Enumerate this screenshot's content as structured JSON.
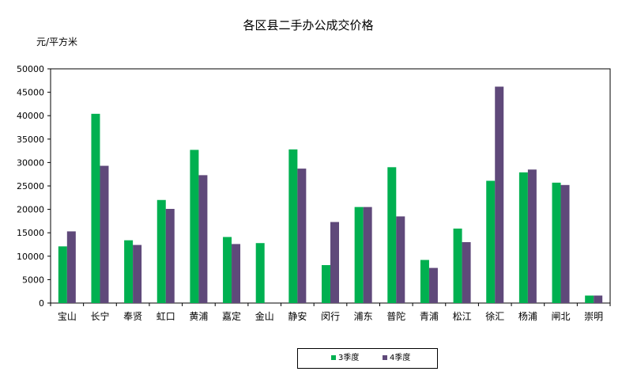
{
  "chart_data": {
    "type": "bar",
    "title": "各区县二手办公成交价格",
    "ylabel": "元/平方米",
    "xlabel": "",
    "ylim": [
      0,
      50000
    ],
    "yticks": [
      0,
      5000,
      10000,
      15000,
      20000,
      25000,
      30000,
      35000,
      40000,
      45000,
      50000
    ],
    "categories": [
      "宝山",
      "长宁",
      "奉贤",
      "虹口",
      "黄浦",
      "嘉定",
      "金山",
      "静安",
      "闵行",
      "浦东",
      "普陀",
      "青浦",
      "松江",
      "徐汇",
      "杨浦",
      "闸北",
      "崇明"
    ],
    "series": [
      {
        "name": "3季度",
        "color": "#00b050",
        "values": [
          12100,
          40400,
          13400,
          22000,
          32700,
          14100,
          12800,
          32800,
          8100,
          20500,
          29000,
          9200,
          15900,
          26100,
          27900,
          25700,
          1600
        ]
      },
      {
        "name": "4季度",
        "color": "#5f497a",
        "values": [
          15300,
          29300,
          12400,
          20100,
          27300,
          12600,
          null,
          28700,
          17300,
          20500,
          18500,
          7500,
          13000,
          46200,
          28500,
          25200,
          1600
        ]
      }
    ],
    "grid": false,
    "legend_position": "bottom"
  }
}
